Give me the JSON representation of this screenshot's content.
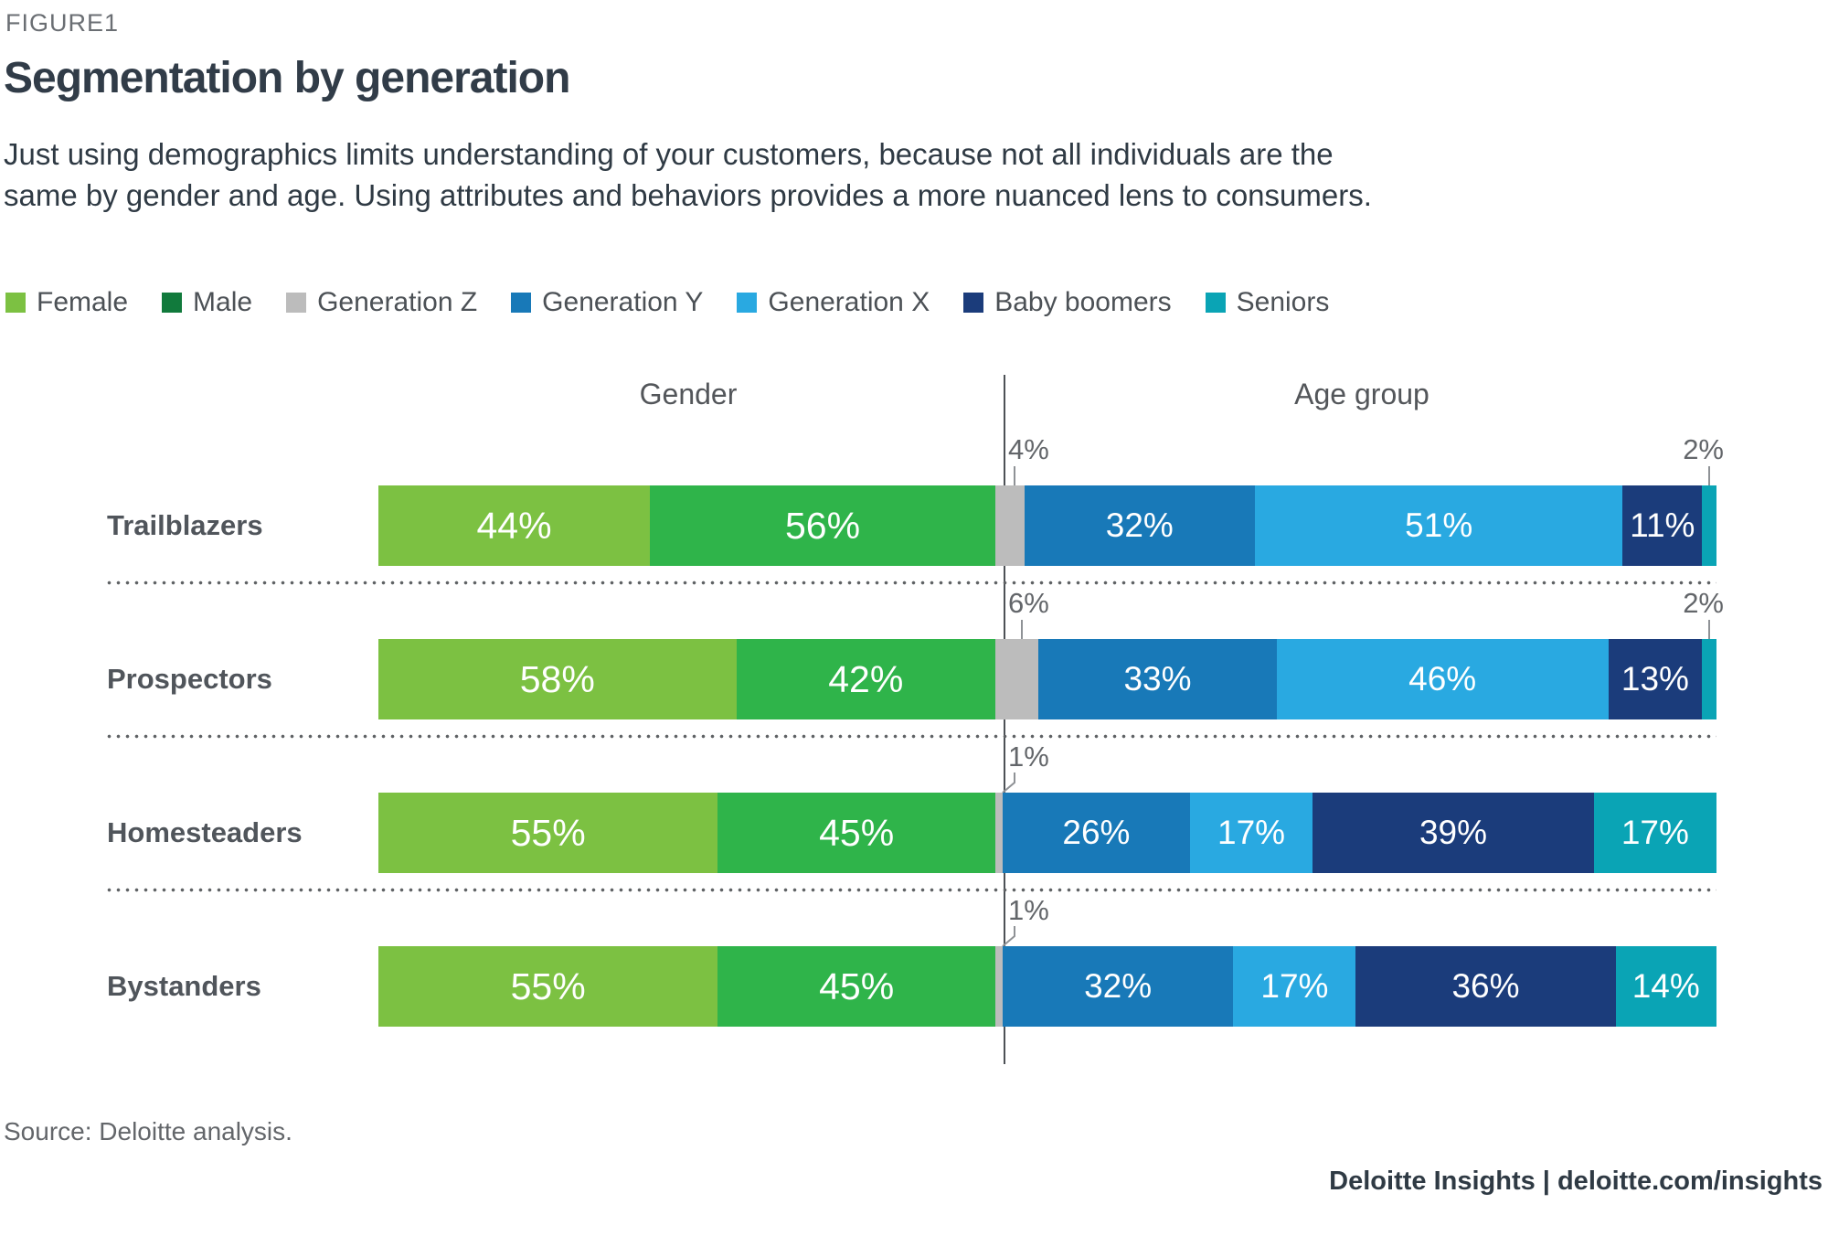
{
  "figure_label": "FIGURE1",
  "title": "Segmentation by generation",
  "subtitle": "Just using demographics limits understanding of your customers, because not all individuals are the\nsame by gender and age. Using attributes and behaviors provides a more nuanced lens to consumers.",
  "legend": [
    {
      "label": "Female",
      "color": "#7CC142"
    },
    {
      "label": "Male",
      "color": "#117A3C"
    },
    {
      "label": "Generation Z",
      "color": "#BCBCBC"
    },
    {
      "label": "Generation Y",
      "color": "#1879B8"
    },
    {
      "label": "Generation X",
      "color": "#29A9E1"
    },
    {
      "label": "Baby boomers",
      "color": "#1B3C7B"
    },
    {
      "label": "Seniors",
      "color": "#0AA4B5"
    }
  ],
  "chart_data": {
    "type": "bar",
    "variant": "horizontal-stacked-two-panels",
    "unit": "%",
    "panels": [
      {
        "id": "gender",
        "header": "Gender",
        "series_order": [
          "Female",
          "Male"
        ]
      },
      {
        "id": "age",
        "header": "Age group",
        "series_order": [
          "Generation Z",
          "Generation Y",
          "Generation X",
          "Baby boomers",
          "Seniors"
        ]
      }
    ],
    "bar_colors": {
      "Female": "#7CC142",
      "Male": "#2FB44A",
      "Generation Z": "#BCBCBC",
      "Generation Y": "#1879B8",
      "Generation X": "#29A9E1",
      "Baby boomers": "#1B3C7B",
      "Seniors": "#0AA4B5"
    },
    "rows": [
      {
        "label": "Trailblazers",
        "gender": [
          {
            "name": "Female",
            "value": 44
          },
          {
            "name": "Male",
            "value": 56
          }
        ],
        "age": [
          {
            "name": "Generation Z",
            "value": 4,
            "callout": "left"
          },
          {
            "name": "Generation Y",
            "value": 32
          },
          {
            "name": "Generation X",
            "value": 51
          },
          {
            "name": "Baby boomers",
            "value": 11
          },
          {
            "name": "Seniors",
            "value": 2,
            "callout": "right"
          }
        ]
      },
      {
        "label": "Prospectors",
        "gender": [
          {
            "name": "Female",
            "value": 58
          },
          {
            "name": "Male",
            "value": 42
          }
        ],
        "age": [
          {
            "name": "Generation Z",
            "value": 6,
            "callout": "left"
          },
          {
            "name": "Generation Y",
            "value": 33
          },
          {
            "name": "Generation X",
            "value": 46
          },
          {
            "name": "Baby boomers",
            "value": 13
          },
          {
            "name": "Seniors",
            "value": 2,
            "callout": "right"
          }
        ]
      },
      {
        "label": "Homesteaders",
        "gender": [
          {
            "name": "Female",
            "value": 55
          },
          {
            "name": "Male",
            "value": 45
          }
        ],
        "age": [
          {
            "name": "Generation Z",
            "value": 1,
            "callout": "left-elbow"
          },
          {
            "name": "Generation Y",
            "value": 26
          },
          {
            "name": "Generation X",
            "value": 17
          },
          {
            "name": "Baby boomers",
            "value": 39
          },
          {
            "name": "Seniors",
            "value": 17
          }
        ]
      },
      {
        "label": "Bystanders",
        "gender": [
          {
            "name": "Female",
            "value": 55
          },
          {
            "name": "Male",
            "value": 45
          }
        ],
        "age": [
          {
            "name": "Generation Z",
            "value": 1,
            "callout": "left-elbow"
          },
          {
            "name": "Generation Y",
            "value": 32
          },
          {
            "name": "Generation X",
            "value": 17
          },
          {
            "name": "Baby boomers",
            "value": 36
          },
          {
            "name": "Seniors",
            "value": 14
          }
        ]
      }
    ]
  },
  "source": "Source: Deloitte analysis.",
  "footer": "Deloitte Insights | deloitte.com/insights"
}
